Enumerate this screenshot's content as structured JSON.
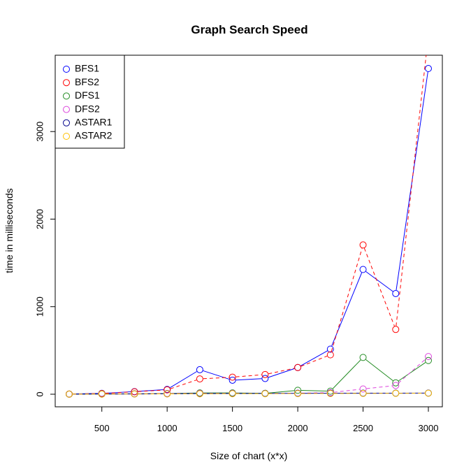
{
  "chart_data": {
    "type": "line",
    "title": "Graph Search Speed",
    "xlabel": "Size of chart (x*x)",
    "ylabel": "time in milliseconds",
    "xlim": [
      250,
      3000
    ],
    "ylim": [
      0,
      3800
    ],
    "x_ticks": [
      500,
      1000,
      1500,
      2000,
      2500,
      3000
    ],
    "y_ticks": [
      0,
      1000,
      2000,
      3000
    ],
    "legend_position": "top-left",
    "x": [
      250,
      500,
      750,
      1000,
      1250,
      1500,
      1750,
      2000,
      2250,
      2500,
      2750,
      3000
    ],
    "series": [
      {
        "name": "BFS1",
        "color": "#0000ff",
        "line": "solid",
        "values": [
          2,
          10,
          30,
          55,
          280,
          160,
          180,
          305,
          515,
          1425,
          1150,
          3720
        ]
      },
      {
        "name": "BFS2",
        "color": "#ff0000",
        "line": "dashed",
        "values": [
          2,
          8,
          28,
          50,
          175,
          195,
          225,
          305,
          450,
          1705,
          740,
          4100
        ]
      },
      {
        "name": "DFS1",
        "color": "#228b22",
        "line": "solid",
        "values": [
          1,
          3,
          5,
          8,
          15,
          15,
          10,
          45,
          35,
          420,
          130,
          385
        ]
      },
      {
        "name": "DFS2",
        "color": "#dd44dd",
        "line": "dashed",
        "values": [
          1,
          3,
          5,
          8,
          10,
          10,
          8,
          12,
          18,
          60,
          100,
          430
        ]
      },
      {
        "name": "ASTAR1",
        "color": "#00008b",
        "line": "solid",
        "values": [
          1,
          2,
          3,
          5,
          7,
          8,
          9,
          10,
          11,
          12,
          12,
          13
        ]
      },
      {
        "name": "ASTAR2",
        "color": "#ffc000",
        "line": "dashed",
        "values": [
          1,
          2,
          3,
          4,
          5,
          6,
          6,
          7,
          8,
          9,
          10,
          11
        ]
      }
    ]
  }
}
